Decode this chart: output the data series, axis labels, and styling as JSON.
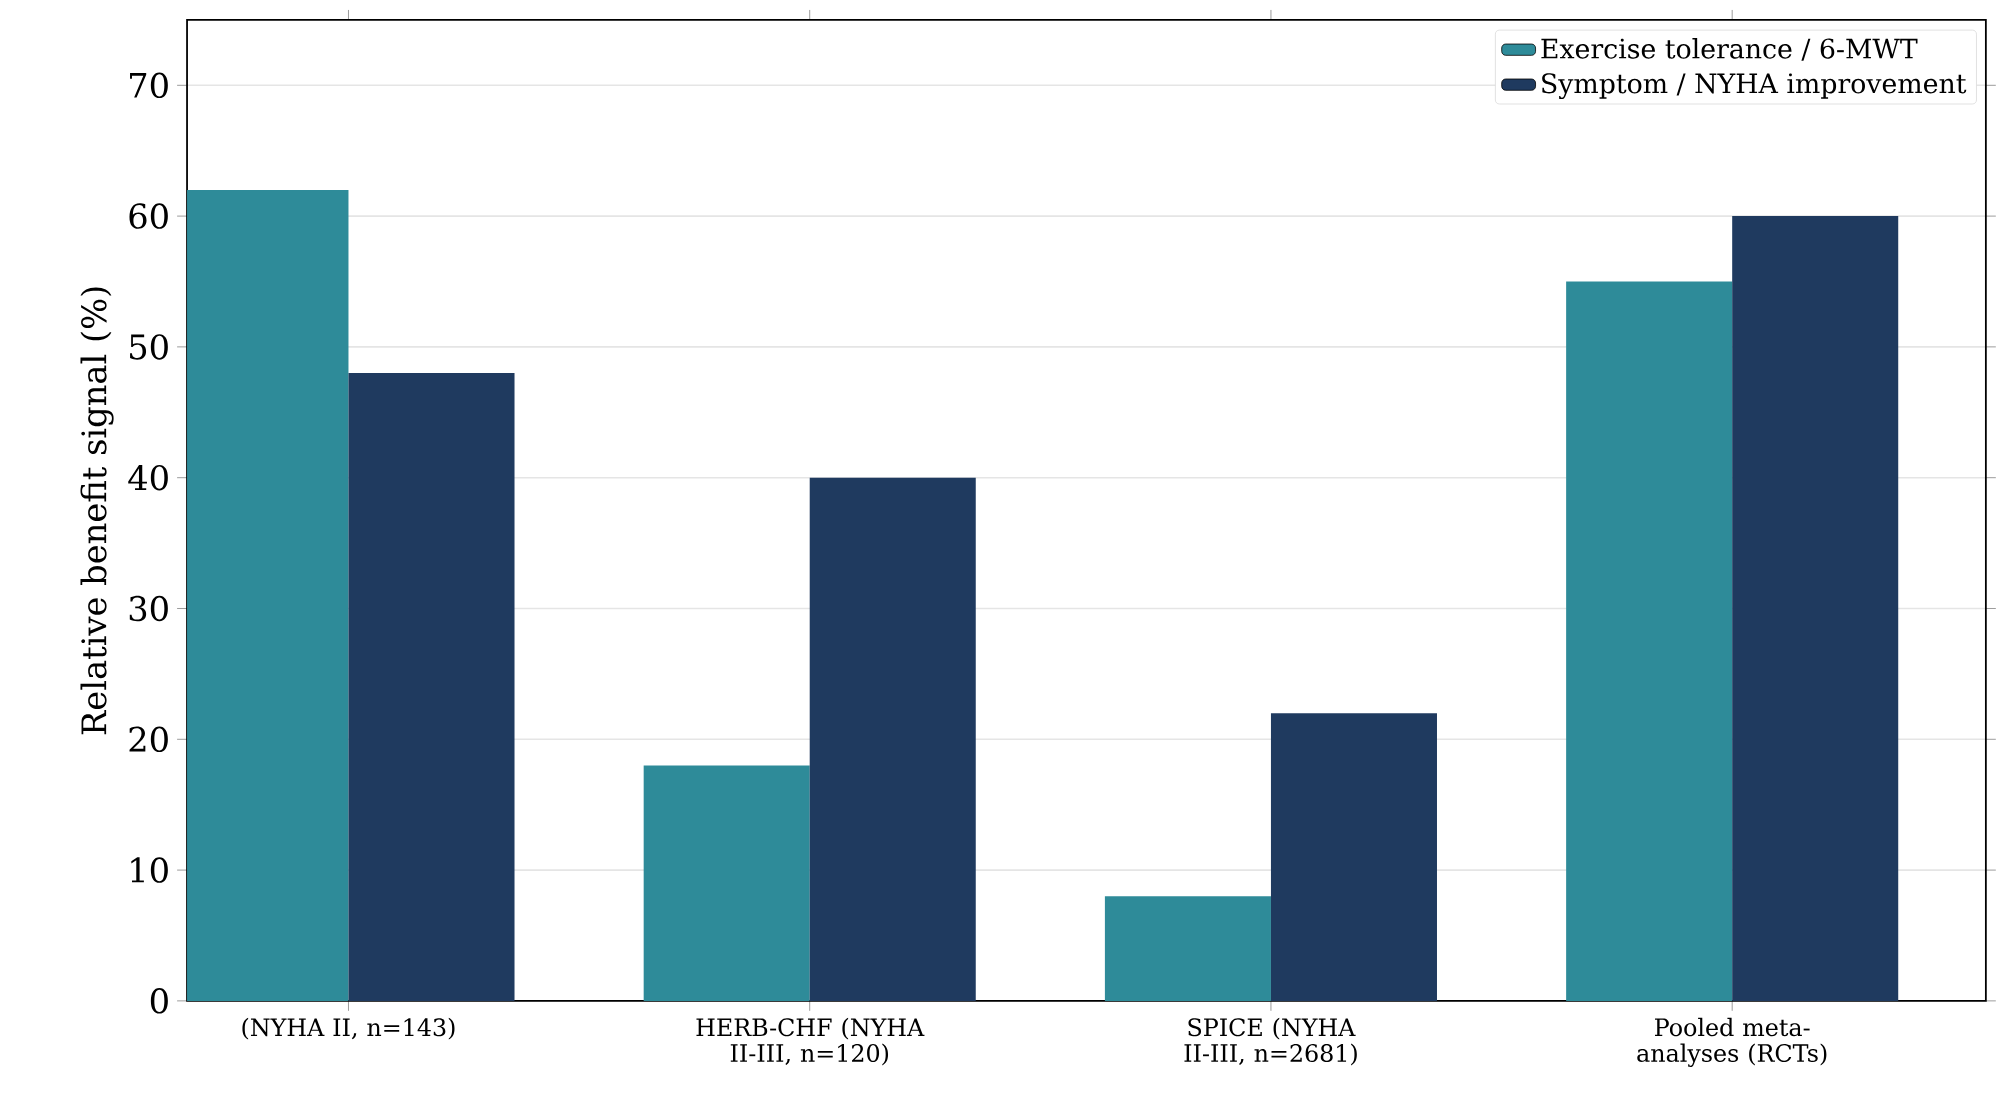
{
  "chart_data": {
    "type": "bar",
    "ylabel": "Relative benefit signal (%)",
    "categories": [
      "(NYHA II, n=143)",
      "HERB-CHF (NYHA II-III, n=120)",
      "SPICE (NYHA II-III, n=2681)",
      "Pooled meta-analyses (RCTs)"
    ],
    "series": [
      {
        "name": "Exercise tolerance / 6-MWT",
        "color": "#2e8b99",
        "values": [
          62,
          18,
          8,
          55
        ]
      },
      {
        "name": "Symptom / NYHA improvement",
        "color": "#1f3a5f",
        "values": [
          48,
          40,
          22,
          60
        ]
      }
    ],
    "ylim": [
      0,
      75
    ],
    "yticks": [
      0,
      10,
      20,
      30,
      40,
      50,
      60,
      70
    ],
    "grid": "y",
    "legend": "top right"
  }
}
